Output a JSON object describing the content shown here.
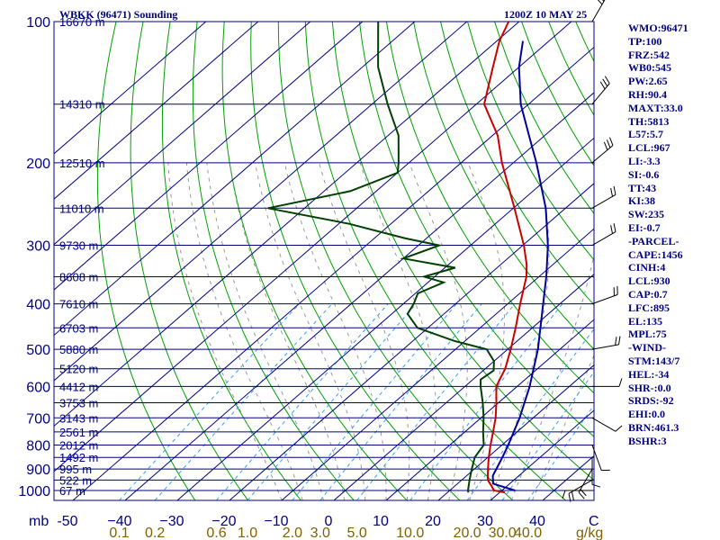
{
  "header": {
    "station": "WBKK (96471) Sounding",
    "time": "1200Z 10 MAY 25"
  },
  "stats": [
    "WMO:96471",
    "TP:100",
    "FRZ:542",
    "WB0:545",
    "PW:2.65",
    "RH:90.4",
    "MAXT:33.0",
    "TH:5813",
    "L57:5.7",
    "LCL:967",
    "LI:-3.3",
    "SI:-0.6",
    "TT:43",
    "KI:38",
    "SW:235",
    "EI:-0.7",
    "-PARCEL-",
    "CAPE:1456",
    "CINH:4",
    "LCL:930",
    "CAP:0.7",
    "LFC:895",
    "EL:135",
    "MPL:75",
    "-WIND-",
    "STM:143/7",
    "HEL:-34",
    "SHR-:0.0",
    "SRDS:-92",
    "EHI:0.0",
    "BRN:461.3",
    "BSHR:3"
  ],
  "chart_data": {
    "type": "line",
    "title": "WBKK (96471) Sounding",
    "xlabel": "",
    "ylabel": "mb",
    "x_unit_label": "C",
    "mixing_ratio_unit": "g/kg",
    "pressure_ticks": [
      100,
      200,
      300,
      400,
      500,
      600,
      700,
      800,
      900,
      1000
    ],
    "temperature_ticks": [
      -50,
      -40,
      -30,
      -20,
      -10,
      0,
      10,
      20,
      30,
      40
    ],
    "temperature_tick_labels": [
      "-50",
      "−40",
      "−30",
      "−20",
      "−10",
      "0",
      "10",
      "20",
      "30",
      "40"
    ],
    "mixing_ratio_ticks": [
      "0.1",
      "0.2",
      "0.6",
      "1.0",
      "2.0",
      "3.0",
      "5.0",
      "10.0",
      "20.0",
      "30.0",
      "40.0"
    ],
    "height_labels": [
      {
        "p": 100,
        "label": "16670 m"
      },
      {
        "p": 150,
        "label": "14310 m"
      },
      {
        "p": 200,
        "label": "12510 m"
      },
      {
        "p": 250,
        "label": "11010 m"
      },
      {
        "p": 300,
        "label": "9730 m"
      },
      {
        "p": 350,
        "label": "8608 m"
      },
      {
        "p": 400,
        "label": "7610 m"
      },
      {
        "p": 450,
        "label": "6703 m"
      },
      {
        "p": 500,
        "label": "5880 m"
      },
      {
        "p": 550,
        "label": "5120 m"
      },
      {
        "p": 600,
        "label": "4412 m"
      },
      {
        "p": 650,
        "label": "3753 m"
      },
      {
        "p": 700,
        "label": "3143 m"
      },
      {
        "p": 750,
        "label": "2561 m"
      },
      {
        "p": 800,
        "label": "2012 m"
      },
      {
        "p": 850,
        "label": "1492 m"
      },
      {
        "p": 900,
        "label": "995 m"
      },
      {
        "p": 950,
        "label": "522 m"
      },
      {
        "p": 1000,
        "label": "67 m"
      }
    ],
    "series": [
      {
        "key": "temperature",
        "color": "#cc0000",
        "points": [
          [
            1010,
            31.0
          ],
          [
            1000,
            28.5
          ],
          [
            975,
            26.8
          ],
          [
            950,
            25.0
          ],
          [
            925,
            23.8
          ],
          [
            900,
            22.6
          ],
          [
            875,
            21.4
          ],
          [
            850,
            20.2
          ],
          [
            800,
            17.8
          ],
          [
            750,
            15.4
          ],
          [
            700,
            12.8
          ],
          [
            650,
            9.6
          ],
          [
            600,
            6.0
          ],
          [
            550,
            3.8
          ],
          [
            500,
            0.6
          ],
          [
            450,
            -3.2
          ],
          [
            400,
            -7.6
          ],
          [
            350,
            -12.4
          ],
          [
            330,
            -15.0
          ],
          [
            300,
            -19.8
          ],
          [
            250,
            -29.8
          ],
          [
            200,
            -42.2
          ],
          [
            175,
            -49.0
          ],
          [
            150,
            -58.5
          ],
          [
            125,
            -65.0
          ],
          [
            110,
            -69.5
          ],
          [
            100,
            -72.0
          ]
        ]
      },
      {
        "key": "dewpoint",
        "color": "#004000",
        "points": [
          [
            1010,
            24.0
          ],
          [
            1000,
            23.5
          ],
          [
            950,
            21.5
          ],
          [
            900,
            19.5
          ],
          [
            850,
            17.5
          ],
          [
            800,
            16.5
          ],
          [
            750,
            13.5
          ],
          [
            700,
            10.5
          ],
          [
            650,
            7.0
          ],
          [
            600,
            3.0
          ],
          [
            580,
            1.5
          ],
          [
            555,
            2.0
          ],
          [
            530,
            0.0
          ],
          [
            500,
            -4.0
          ],
          [
            480,
            -12.0
          ],
          [
            450,
            -22.0
          ],
          [
            420,
            -27.0
          ],
          [
            400,
            -28.0
          ],
          [
            380,
            -29.5
          ],
          [
            360,
            -27.0
          ],
          [
            350,
            -32.0
          ],
          [
            335,
            -28.0
          ],
          [
            320,
            -40.0
          ],
          [
            300,
            -36.0
          ],
          [
            290,
            -44.0
          ],
          [
            270,
            -58.0
          ],
          [
            250,
            -77.0
          ],
          [
            230,
            -65.0
          ],
          [
            210,
            -60.0
          ],
          [
            200,
            -62.0
          ],
          [
            175,
            -68.0
          ],
          [
            150,
            -77.0
          ],
          [
            125,
            -87.0
          ],
          [
            100,
            -97.0
          ]
        ]
      },
      {
        "key": "parcel",
        "color": "#000099",
        "points": [
          [
            1000,
            32.5
          ],
          [
            967,
            26.8
          ],
          [
            930,
            25.0
          ],
          [
            900,
            24.2
          ],
          [
            850,
            22.8
          ],
          [
            800,
            21.2
          ],
          [
            700,
            17.4
          ],
          [
            600,
            12.4
          ],
          [
            500,
            5.8
          ],
          [
            400,
            -3.2
          ],
          [
            350,
            -8.6
          ],
          [
            300,
            -15.2
          ],
          [
            250,
            -23.8
          ],
          [
            200,
            -35.6
          ],
          [
            175,
            -43.0
          ],
          [
            150,
            -51.5
          ],
          [
            125,
            -60.0
          ],
          [
            110,
            -65.0
          ]
        ]
      }
    ],
    "wind_barbs": [
      {
        "p": 1000,
        "dir": 270,
        "spd": 10
      },
      {
        "p": 950,
        "dir": 240,
        "spd": 15
      },
      {
        "p": 900,
        "dir": 210,
        "spd": 15
      },
      {
        "p": 850,
        "dir": 180,
        "spd": 10
      },
      {
        "p": 800,
        "dir": 160,
        "spd": 10
      },
      {
        "p": 700,
        "dir": 120,
        "spd": 10
      },
      {
        "p": 600,
        "dir": 90,
        "spd": 10
      },
      {
        "p": 500,
        "dir": 80,
        "spd": 15
      },
      {
        "p": 400,
        "dir": 70,
        "spd": 15
      },
      {
        "p": 300,
        "dir": 60,
        "spd": 20
      },
      {
        "p": 250,
        "dir": 60,
        "spd": 20
      },
      {
        "p": 200,
        "dir": 50,
        "spd": 25
      },
      {
        "p": 150,
        "dir": 40,
        "spd": 25
      },
      {
        "p": 100,
        "dir": 30,
        "spd": 30
      }
    ],
    "colors": {
      "frame": "#000080",
      "isobar": "#000080",
      "isotherm": "#000080",
      "dry_adiabat": "#00a000",
      "moist_adiabat": "#999999",
      "mixing_ratio": "#33a0ff",
      "mixing_ratio_label": "#806000",
      "axis_text": "#000080"
    },
    "grid": true
  }
}
